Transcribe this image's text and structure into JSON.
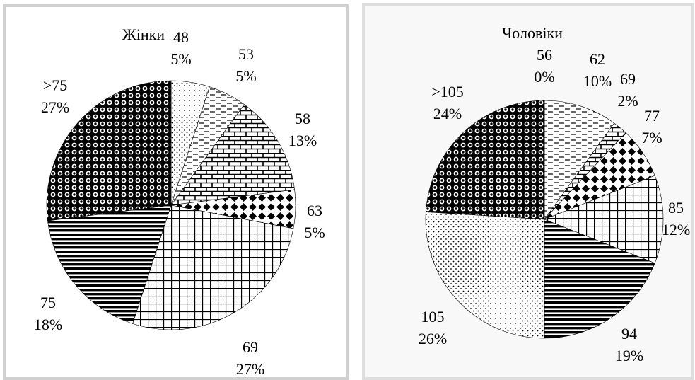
{
  "chart_data": [
    {
      "type": "pie",
      "title": "Жінки",
      "slices": [
        {
          "label": "48",
          "percent": 5,
          "pct_text": "5%",
          "pattern": "dots"
        },
        {
          "label": "53",
          "percent": 5,
          "pct_text": "5%",
          "pattern": "dashes"
        },
        {
          "label": "58",
          "percent": 13,
          "pct_text": "13%",
          "pattern": "bricks"
        },
        {
          "label": "63",
          "percent": 5,
          "pct_text": "5%",
          "pattern": "diamonds"
        },
        {
          "label": "69",
          "percent": 27,
          "pct_text": "27%",
          "pattern": "grid"
        },
        {
          "label": "75",
          "percent": 18,
          "pct_text": "18%",
          "pattern": "hstripes"
        },
        {
          "label": ">75",
          "percent": 27,
          "pct_text": "27%",
          "pattern": "circles"
        }
      ]
    },
    {
      "type": "pie",
      "title": "Чоловіки",
      "slices": [
        {
          "label": "56",
          "percent": 0,
          "pct_text": "0%",
          "pattern": "dots"
        },
        {
          "label": "62",
          "percent": 10,
          "pct_text": "10%",
          "pattern": "dashes"
        },
        {
          "label": "69",
          "percent": 2,
          "pct_text": "2%",
          "pattern": "bricks"
        },
        {
          "label": "77",
          "percent": 7,
          "pct_text": "7%",
          "pattern": "diamonds"
        },
        {
          "label": "85",
          "percent": 12,
          "pct_text": "12%",
          "pattern": "grid"
        },
        {
          "label": "94",
          "percent": 19,
          "pct_text": "19%",
          "pattern": "hstripes"
        },
        {
          "label": "105",
          "percent": 26,
          "pct_text": "26%",
          "pattern": "dots"
        },
        {
          "label": ">105",
          "percent": 24,
          "pct_text": "24%",
          "pattern": "circles"
        }
      ]
    }
  ]
}
